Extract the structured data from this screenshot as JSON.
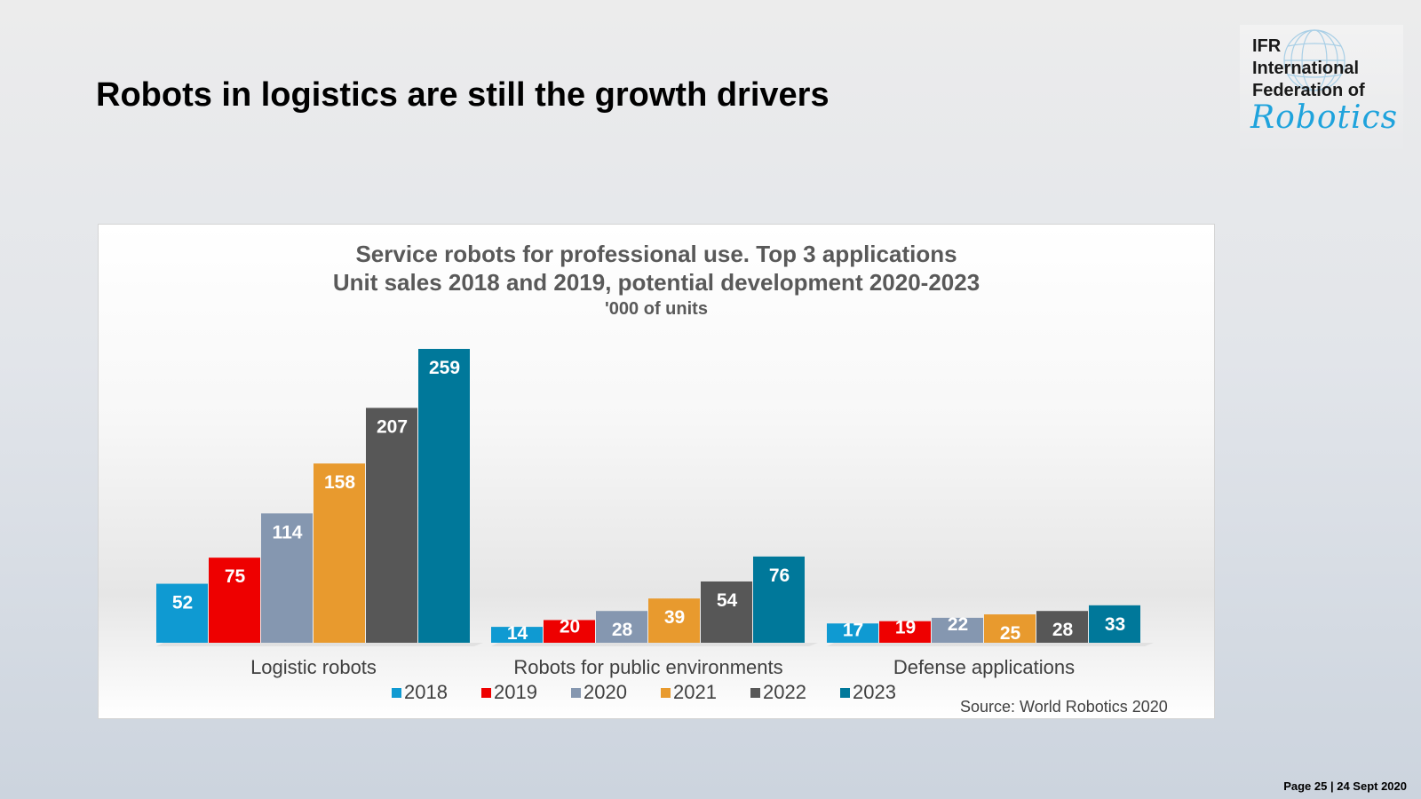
{
  "slide": {
    "title": "Robots in logistics are still the growth drivers",
    "footer": "Page 25 | 24 Sept 2020"
  },
  "logo": {
    "line1": "IFR",
    "line2": "International",
    "line3": "Federation of",
    "line4": "Robotics",
    "accent_color": "#1fa3dc"
  },
  "chart_data": {
    "type": "bar",
    "title": "Service robots for professional use. Top 3 applications",
    "subtitle": "Unit sales 2018 and 2019, potential development 2020-2023",
    "unit_label": "'000 of units",
    "categories": [
      "Logistic robots",
      "Robots for public environments",
      "Defense applications"
    ],
    "series": [
      {
        "name": "2018",
        "color": "#0f9ad2",
        "values": [
          52,
          14,
          17
        ]
      },
      {
        "name": "2019",
        "color": "#ee0000",
        "values": [
          75,
          20,
          19
        ]
      },
      {
        "name": "2020",
        "color": "#8597b0",
        "values": [
          114,
          28,
          22
        ]
      },
      {
        "name": "2021",
        "color": "#e89a2e",
        "values": [
          158,
          39,
          25
        ]
      },
      {
        "name": "2022",
        "color": "#575757",
        "values": [
          207,
          54,
          28
        ]
      },
      {
        "name": "2023",
        "color": "#00789a",
        "values": [
          259,
          76,
          33
        ]
      }
    ],
    "ylim": [
      0,
      259
    ],
    "grid": false,
    "legend_position": "bottom",
    "source": "Source: World Robotics 2020"
  }
}
